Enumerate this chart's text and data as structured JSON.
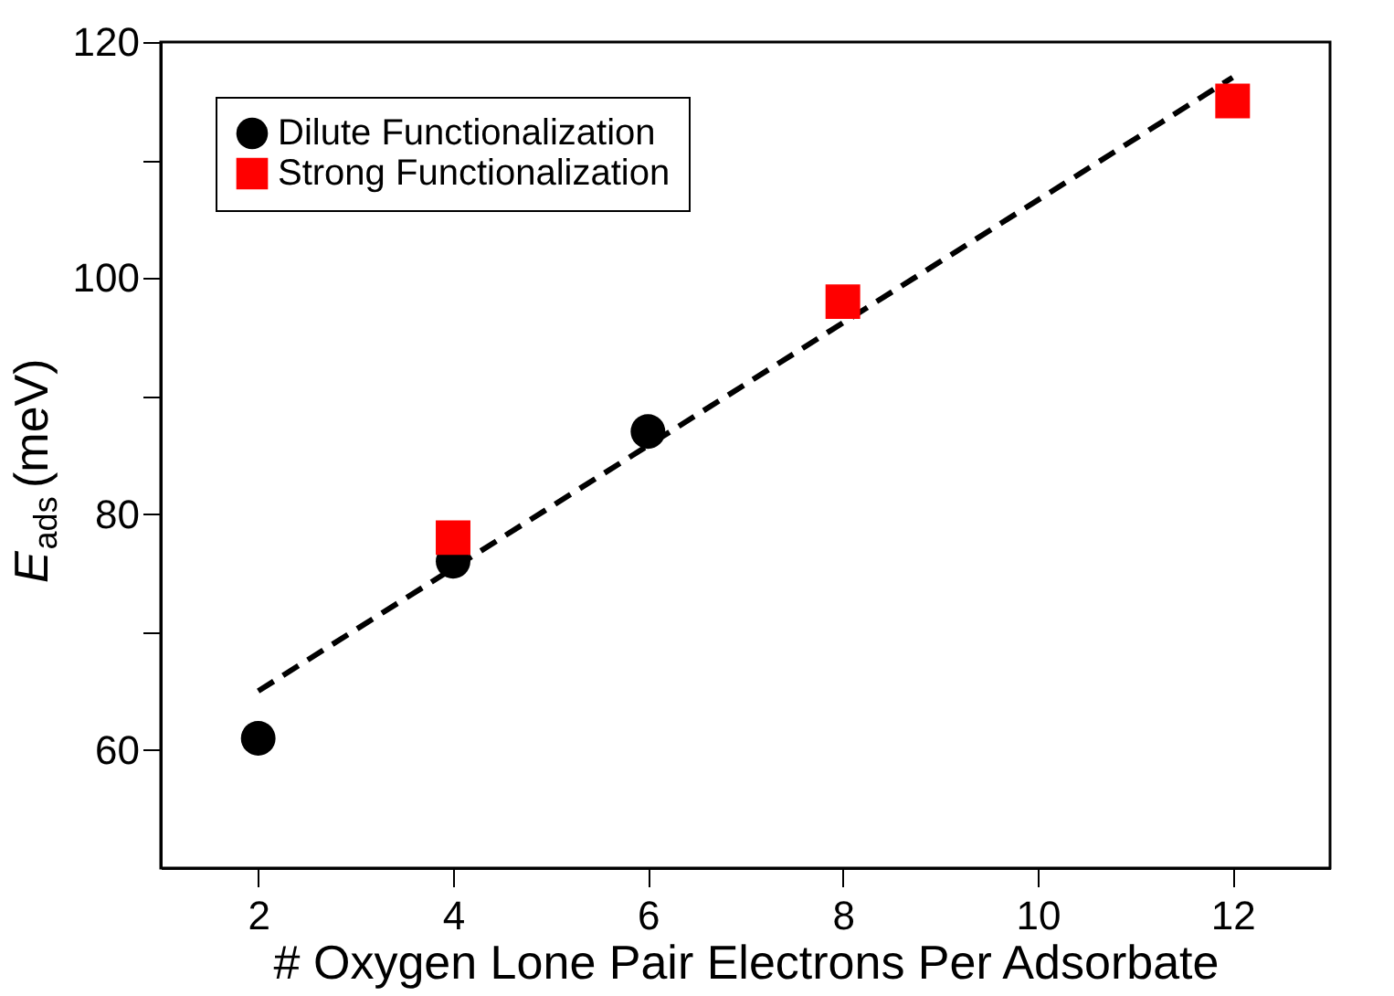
{
  "chart_data": {
    "type": "scatter",
    "xlabel": "# Oxygen Lone Pair Electrons Per Adsorbate",
    "ylabel": "E$_{ads}$ (meV)",
    "xlim": [
      1,
      13
    ],
    "xticks": [
      2,
      4,
      6,
      8,
      10,
      12
    ],
    "ylim": [
      50,
      120
    ],
    "yticks": [
      60,
      {
        "value": 70,
        "label": null
      },
      80,
      {
        "value": 90,
        "label": null
      },
      100,
      {
        "value": 110,
        "label": null
      },
      120
    ],
    "grid": false,
    "legend": "top left",
    "series": [
      {
        "name": "Dilute Functionalization",
        "color": "#000000",
        "marker": "circle",
        "x": [
          2,
          4,
          6
        ],
        "values": [
          61,
          76,
          87
        ]
      },
      {
        "name": "Strong Functionalization",
        "color": "#ff0000",
        "marker": "square",
        "x": [
          4,
          8,
          12
        ],
        "values": [
          78,
          98,
          115
        ]
      },
      {
        "type": "line",
        "color": "#000000",
        "line_style": "dashed",
        "marker": "none",
        "x": [
          2,
          12
        ],
        "values": [
          65,
          117
        ]
      }
    ]
  }
}
